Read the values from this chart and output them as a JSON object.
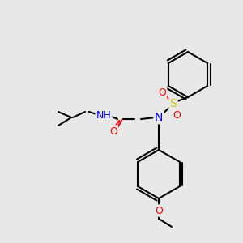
{
  "bg_color": "#e8e8e8",
  "bond_color": "#000000",
  "bond_lw": 1.5,
  "atom_colors": {
    "N": "#0000ff",
    "O": "#ff0000",
    "S": "#cccc00",
    "H": "#008080",
    "C": "#000000"
  },
  "font_size": 9,
  "fig_size": [
    3.0,
    3.0
  ],
  "dpi": 100
}
